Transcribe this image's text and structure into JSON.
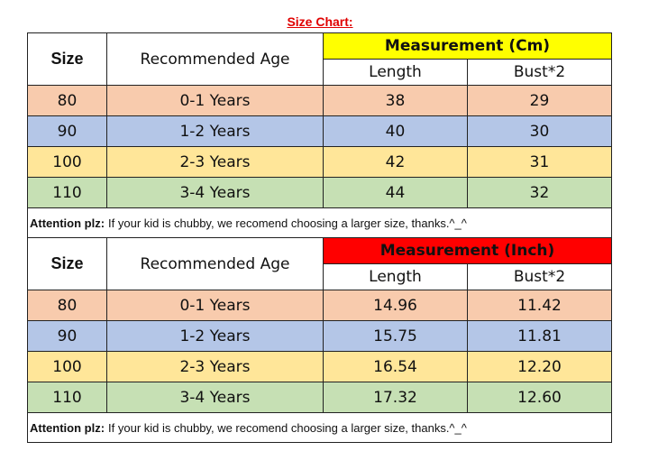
{
  "title": "Size Chart:",
  "tables": [
    {
      "headers": {
        "size": "Size",
        "age": "Recommended Age",
        "measurement": "Measurement (Cm)",
        "length": "Length",
        "bust": "Bust*2"
      },
      "rows": [
        [
          "80",
          "0-1 Years",
          "38",
          "29"
        ],
        [
          "90",
          "1-2 Years",
          "40",
          "30"
        ],
        [
          "100",
          "2-3 Years",
          "42",
          "31"
        ],
        [
          "110",
          "3-4 Years",
          "44",
          "32"
        ]
      ],
      "note": {
        "label": "Attention plz:",
        "text": "If your kid is chubby, we recomend choosing a larger size, thanks.^_^"
      }
    },
    {
      "headers": {
        "size": "Size",
        "age": "Recommended Age",
        "measurement": "Measurement (Inch)",
        "length": "Length",
        "bust": "Bust*2"
      },
      "rows": [
        [
          "80",
          "0-1 Years",
          "14.96",
          "11.42"
        ],
        [
          "90",
          "1-2 Years",
          "15.75",
          "11.81"
        ],
        [
          "100",
          "2-3 Years",
          "16.54",
          "12.20"
        ],
        [
          "110",
          "3-4 Years",
          "17.32",
          "12.60"
        ]
      ],
      "note": {
        "label": "Attention plz:",
        "text": "If your kid is chubby, we recomend choosing a larger size, thanks.^_^"
      }
    }
  ]
}
